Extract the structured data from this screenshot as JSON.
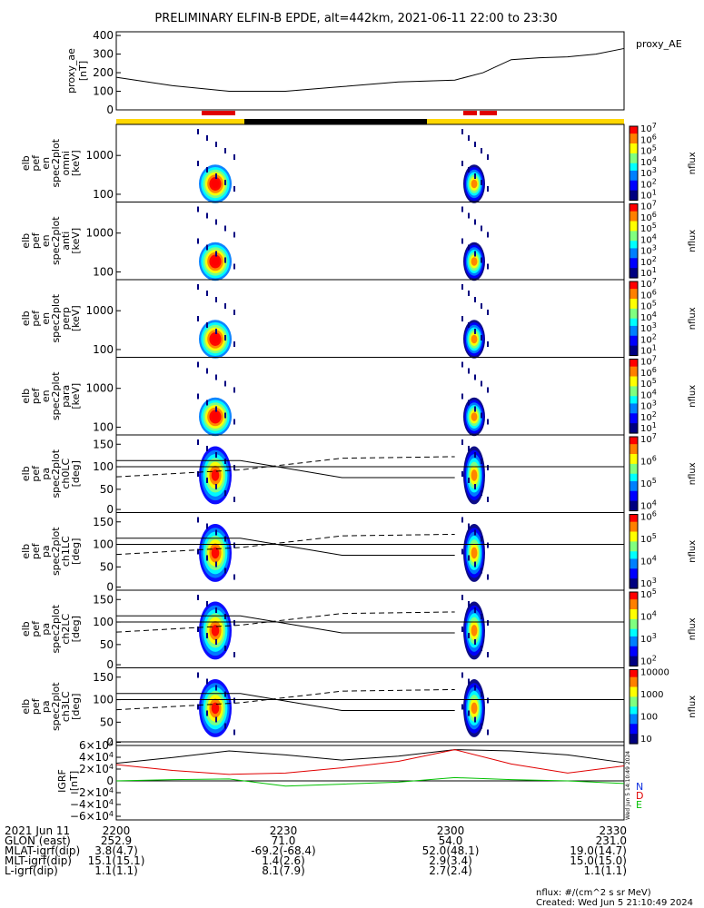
{
  "title": "PRELIMINARY ELFIN-B EPDE, alt=442km, 2021-06-11 22:00 to 23:30",
  "legend": {
    "proxy_ae": "proxy_AE",
    "igrf": [
      "N",
      "D",
      "E"
    ]
  },
  "colors": {
    "black": "#000000",
    "red": "#e00000",
    "blue": "#1030e0",
    "green": "#00c000",
    "yellow": "#ffd700"
  },
  "chart_data": [
    {
      "type": "line",
      "ylabel": "proxy_ae [nT]",
      "yticks": [
        "400",
        "300",
        "200",
        "100",
        "0"
      ],
      "ylim": [
        0,
        420
      ],
      "x": [
        0,
        10,
        20,
        30,
        40,
        50,
        60,
        65,
        70,
        75,
        80,
        85,
        90
      ],
      "series": [
        {
          "name": "proxy_AE",
          "values": [
            175,
            130,
            100,
            100,
            125,
            150,
            160,
            200,
            270,
            280,
            285,
            300,
            330
          ]
        }
      ]
    },
    {
      "type": "heatmap",
      "ylabel": [
        "elb",
        "pef",
        "en",
        "spec2plot",
        "omni",
        "[keV]"
      ],
      "yticks": [
        "1000",
        "100"
      ],
      "colorbar": "nflux",
      "cbticks": [
        "10^7",
        "10^6",
        "10^5",
        "10^4",
        "10^3",
        "10^2",
        "10^1"
      ]
    },
    {
      "type": "heatmap",
      "ylabel": [
        "elb",
        "pef",
        "en",
        "spec2plot",
        "anti",
        "[keV]"
      ],
      "yticks": [
        "1000",
        "100"
      ],
      "colorbar": "nflux",
      "cbticks": [
        "10^7",
        "10^6",
        "10^5",
        "10^4",
        "10^3",
        "10^2",
        "10^1"
      ]
    },
    {
      "type": "heatmap",
      "ylabel": [
        "elb",
        "pef",
        "en",
        "spec2plot",
        "perp",
        "[keV]"
      ],
      "yticks": [
        "1000",
        "100"
      ],
      "colorbar": "nflux",
      "cbticks": [
        "10^7",
        "10^6",
        "10^5",
        "10^4",
        "10^3",
        "10^2",
        "10^1"
      ]
    },
    {
      "type": "heatmap",
      "ylabel": [
        "elb",
        "pef",
        "en",
        "spec2plot",
        "para",
        "[keV]"
      ],
      "yticks": [
        "1000",
        "100"
      ],
      "colorbar": "nflux",
      "cbticks": [
        "10^7",
        "10^6",
        "10^5",
        "10^4",
        "10^3",
        "10^2",
        "10^1"
      ]
    },
    {
      "type": "heatmap",
      "ylabel": [
        "elb",
        "pef",
        "pa",
        "spec2plot",
        "ch0LC",
        "[deg]"
      ],
      "yticks": [
        "150",
        "100",
        "50",
        "0"
      ],
      "colorbar": "nflux",
      "cbticks": [
        "10^7",
        "10^6",
        "10^5",
        "10^4"
      ]
    },
    {
      "type": "heatmap",
      "ylabel": [
        "elb",
        "pef",
        "pa",
        "spec2plot",
        "ch1LC",
        "[deg]"
      ],
      "yticks": [
        "150",
        "100",
        "50",
        "0"
      ],
      "colorbar": "nflux",
      "cbticks": [
        "10^6",
        "10^5",
        "10^4",
        "10^3"
      ]
    },
    {
      "type": "heatmap",
      "ylabel": [
        "elb",
        "pef",
        "pa",
        "spec2plot",
        "ch2LC",
        "[deg]"
      ],
      "yticks": [
        "150",
        "100",
        "50",
        "0"
      ],
      "colorbar": "nflux",
      "cbticks": [
        "10^5",
        "10^4",
        "10^3",
        "10^2"
      ]
    },
    {
      "type": "heatmap",
      "ylabel": [
        "elb",
        "pef",
        "pa",
        "spec2plot",
        "ch3LC",
        "[deg]"
      ],
      "yticks": [
        "150",
        "100",
        "50",
        "0"
      ],
      "colorbar": "nflux",
      "cbticks": [
        "10000",
        "1000",
        "100",
        "10"
      ]
    },
    {
      "type": "line",
      "ylabel": "IGRF [nT]",
      "yticks": [
        "6×10^4",
        "4×10^4",
        "2×10^4",
        "0",
        "−2×10^4",
        "−4×10^4",
        "−6×10^4"
      ],
      "ylim": [
        -60000,
        60000
      ],
      "x": [
        0,
        10,
        20,
        30,
        40,
        50,
        60,
        70,
        80,
        90
      ],
      "series": [
        {
          "name": "N",
          "values": [
            27000,
            36000,
            46000,
            40000,
            32000,
            38000,
            48000,
            46000,
            40000,
            28000
          ]
        },
        {
          "name": "D",
          "values": [
            25000,
            16000,
            10000,
            12000,
            20000,
            30000,
            48000,
            26000,
            12000,
            23000
          ]
        },
        {
          "name": "E",
          "values": [
            0,
            2000,
            3000,
            -8000,
            -5000,
            -2000,
            5000,
            2000,
            0,
            -4000
          ]
        }
      ]
    }
  ],
  "footer": {
    "rows": [
      {
        "label": "2021 Jun 11",
        "values": [
          "2200",
          "2230",
          "2300",
          "2330"
        ]
      },
      {
        "label": "GLON (east)",
        "values": [
          "252.9",
          "71.0",
          "54.0",
          "231.0"
        ]
      },
      {
        "label": "MLAT-igrf(dip)",
        "values": [
          "3.8(4.7)",
          "-69.2(-68.4)",
          "52.0(48.1)",
          "19.0(14.7)"
        ]
      },
      {
        "label": "MLT-igrf(dip)",
        "values": [
          "15.1(15.1)",
          "1.4(2.6)",
          "2.9(3.4)",
          "15.0(15.0)"
        ]
      },
      {
        "label": "L-igrf(dip)",
        "values": [
          "1.1(1.1)",
          "8.1(7.9)",
          "2.7(2.4)",
          "1.1(1.1)"
        ]
      }
    ],
    "units": "nflux: #/(cm^2 s sr MeV)",
    "created": "Created: Wed Jun  5 21:10:49 2024",
    "side_stamp": "Wed Jun  5 14:10:49 2024"
  }
}
